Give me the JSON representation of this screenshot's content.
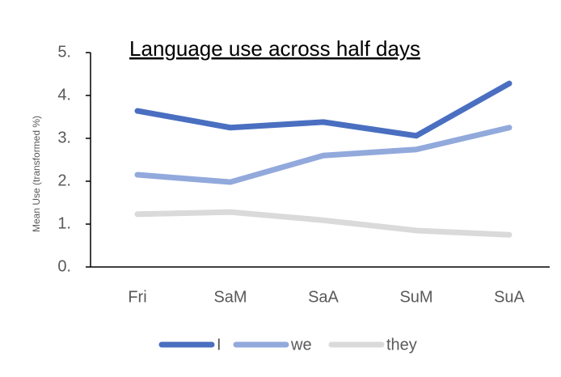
{
  "chart_data": {
    "type": "line",
    "title": "Language use across half days",
    "y_label": "Mean Use (transformed %)",
    "categories": [
      "Fri",
      "SaM",
      "SaA",
      "SuM",
      "SuA"
    ],
    "series": [
      {
        "name": "I",
        "color": "#4a6fc1",
        "values": [
          3.64,
          3.25,
          3.38,
          3.06,
          4.28
        ]
      },
      {
        "name": "we",
        "color": "#92a9dc",
        "values": [
          2.15,
          1.98,
          2.6,
          2.74,
          3.25
        ]
      },
      {
        "name": "they",
        "color": "#dadada",
        "values": [
          1.23,
          1.28,
          1.09,
          0.85,
          0.75
        ]
      }
    ],
    "ylim": [
      0,
      5
    ],
    "yticks": [
      {
        "value": 0,
        "label": "0."
      },
      {
        "value": 1,
        "label": "1."
      },
      {
        "value": 2,
        "label": "2."
      },
      {
        "value": 3,
        "label": "3."
      },
      {
        "value": 4,
        "label": "4."
      },
      {
        "value": 5,
        "label": "5."
      }
    ]
  }
}
